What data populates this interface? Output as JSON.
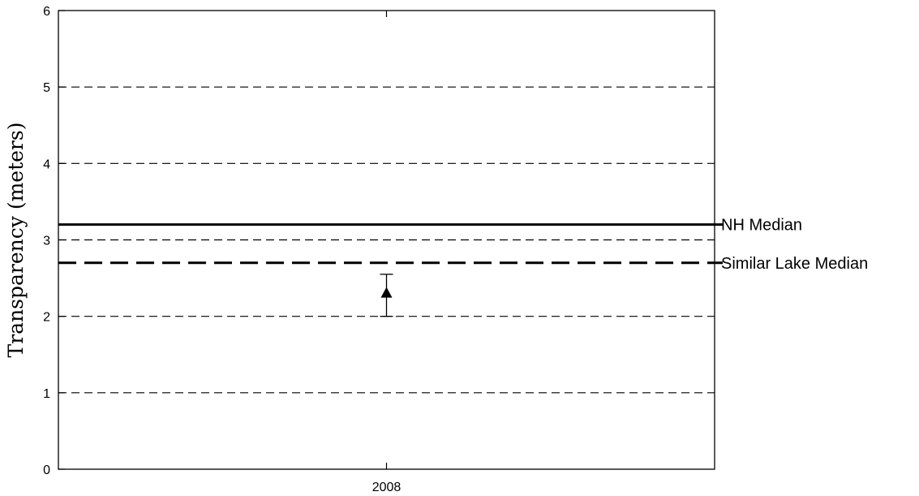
{
  "chart_data": {
    "type": "scatter",
    "title": "",
    "xlabel": "",
    "ylabel": "Transparency (meters)",
    "ylim": [
      0,
      6
    ],
    "yticks": [
      0,
      1,
      2,
      3,
      4,
      5,
      6
    ],
    "categories": [
      "2008"
    ],
    "grid": {
      "y": true,
      "style": "dashed",
      "values": [
        1,
        2,
        3,
        4,
        5
      ]
    },
    "series": [
      {
        "marker": "triangle",
        "points": [
          {
            "x": "2008",
            "y": 2.3,
            "err_low": 2.0,
            "err_high": 2.55
          }
        ]
      }
    ],
    "reference_lines": [
      {
        "label": "NH Median",
        "y": 3.2,
        "style": "solid"
      },
      {
        "label": "Similar Lake Median",
        "y": 2.7,
        "style": "long-dash"
      }
    ]
  }
}
